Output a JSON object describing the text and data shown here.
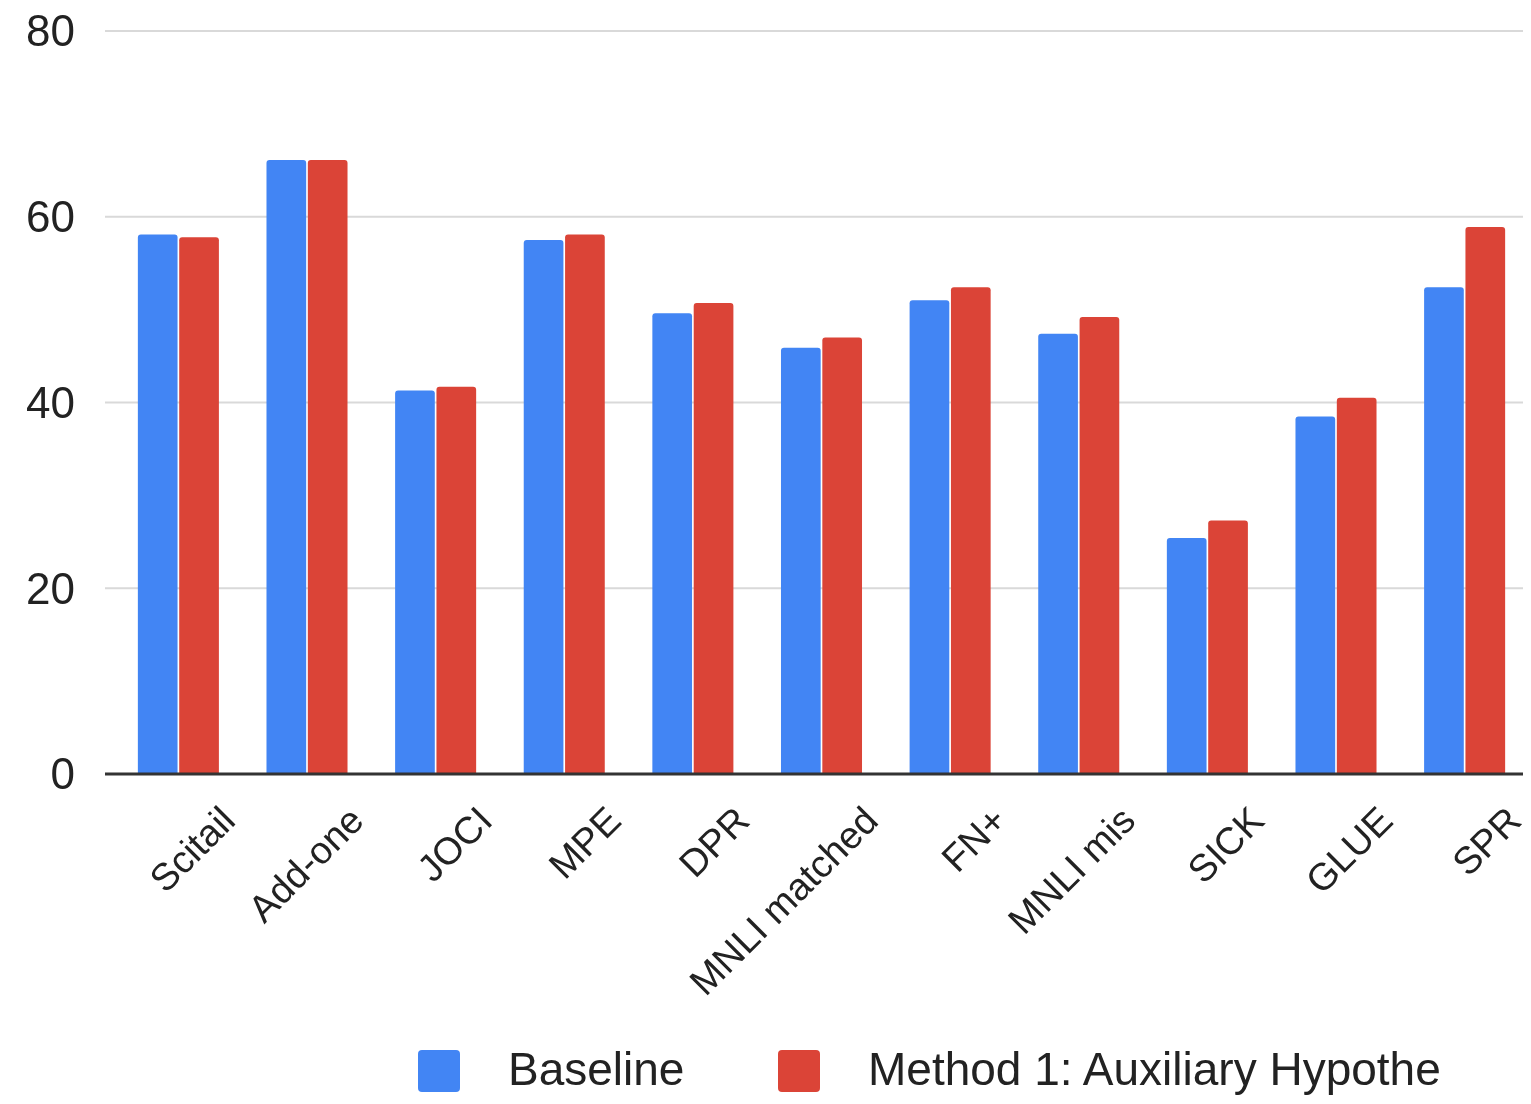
{
  "chart_data": {
    "type": "bar",
    "categories": [
      "Scitail",
      "Add-one",
      "JOCI",
      "MPE",
      "DPR",
      "MNLI matched",
      "FN+",
      "MNLI mis",
      "SICK",
      "GLUE",
      "SPR"
    ],
    "series": [
      {
        "name": "Baseline",
        "color": "#4285f4",
        "values": [
          58.1,
          66.1,
          41.3,
          57.5,
          49.6,
          45.9,
          51.0,
          47.4,
          25.4,
          38.5,
          52.4
        ]
      },
      {
        "name": "Method 1: Auxiliary Hypothe",
        "color": "#db4437",
        "values": [
          57.8,
          66.1,
          41.7,
          58.1,
          50.7,
          47.0,
          52.4,
          49.2,
          27.3,
          40.5,
          58.9
        ]
      }
    ],
    "ylim": [
      0,
      80
    ],
    "yticks": [
      0,
      20,
      40,
      60,
      80
    ],
    "grid": "y",
    "legend": "bottom"
  }
}
